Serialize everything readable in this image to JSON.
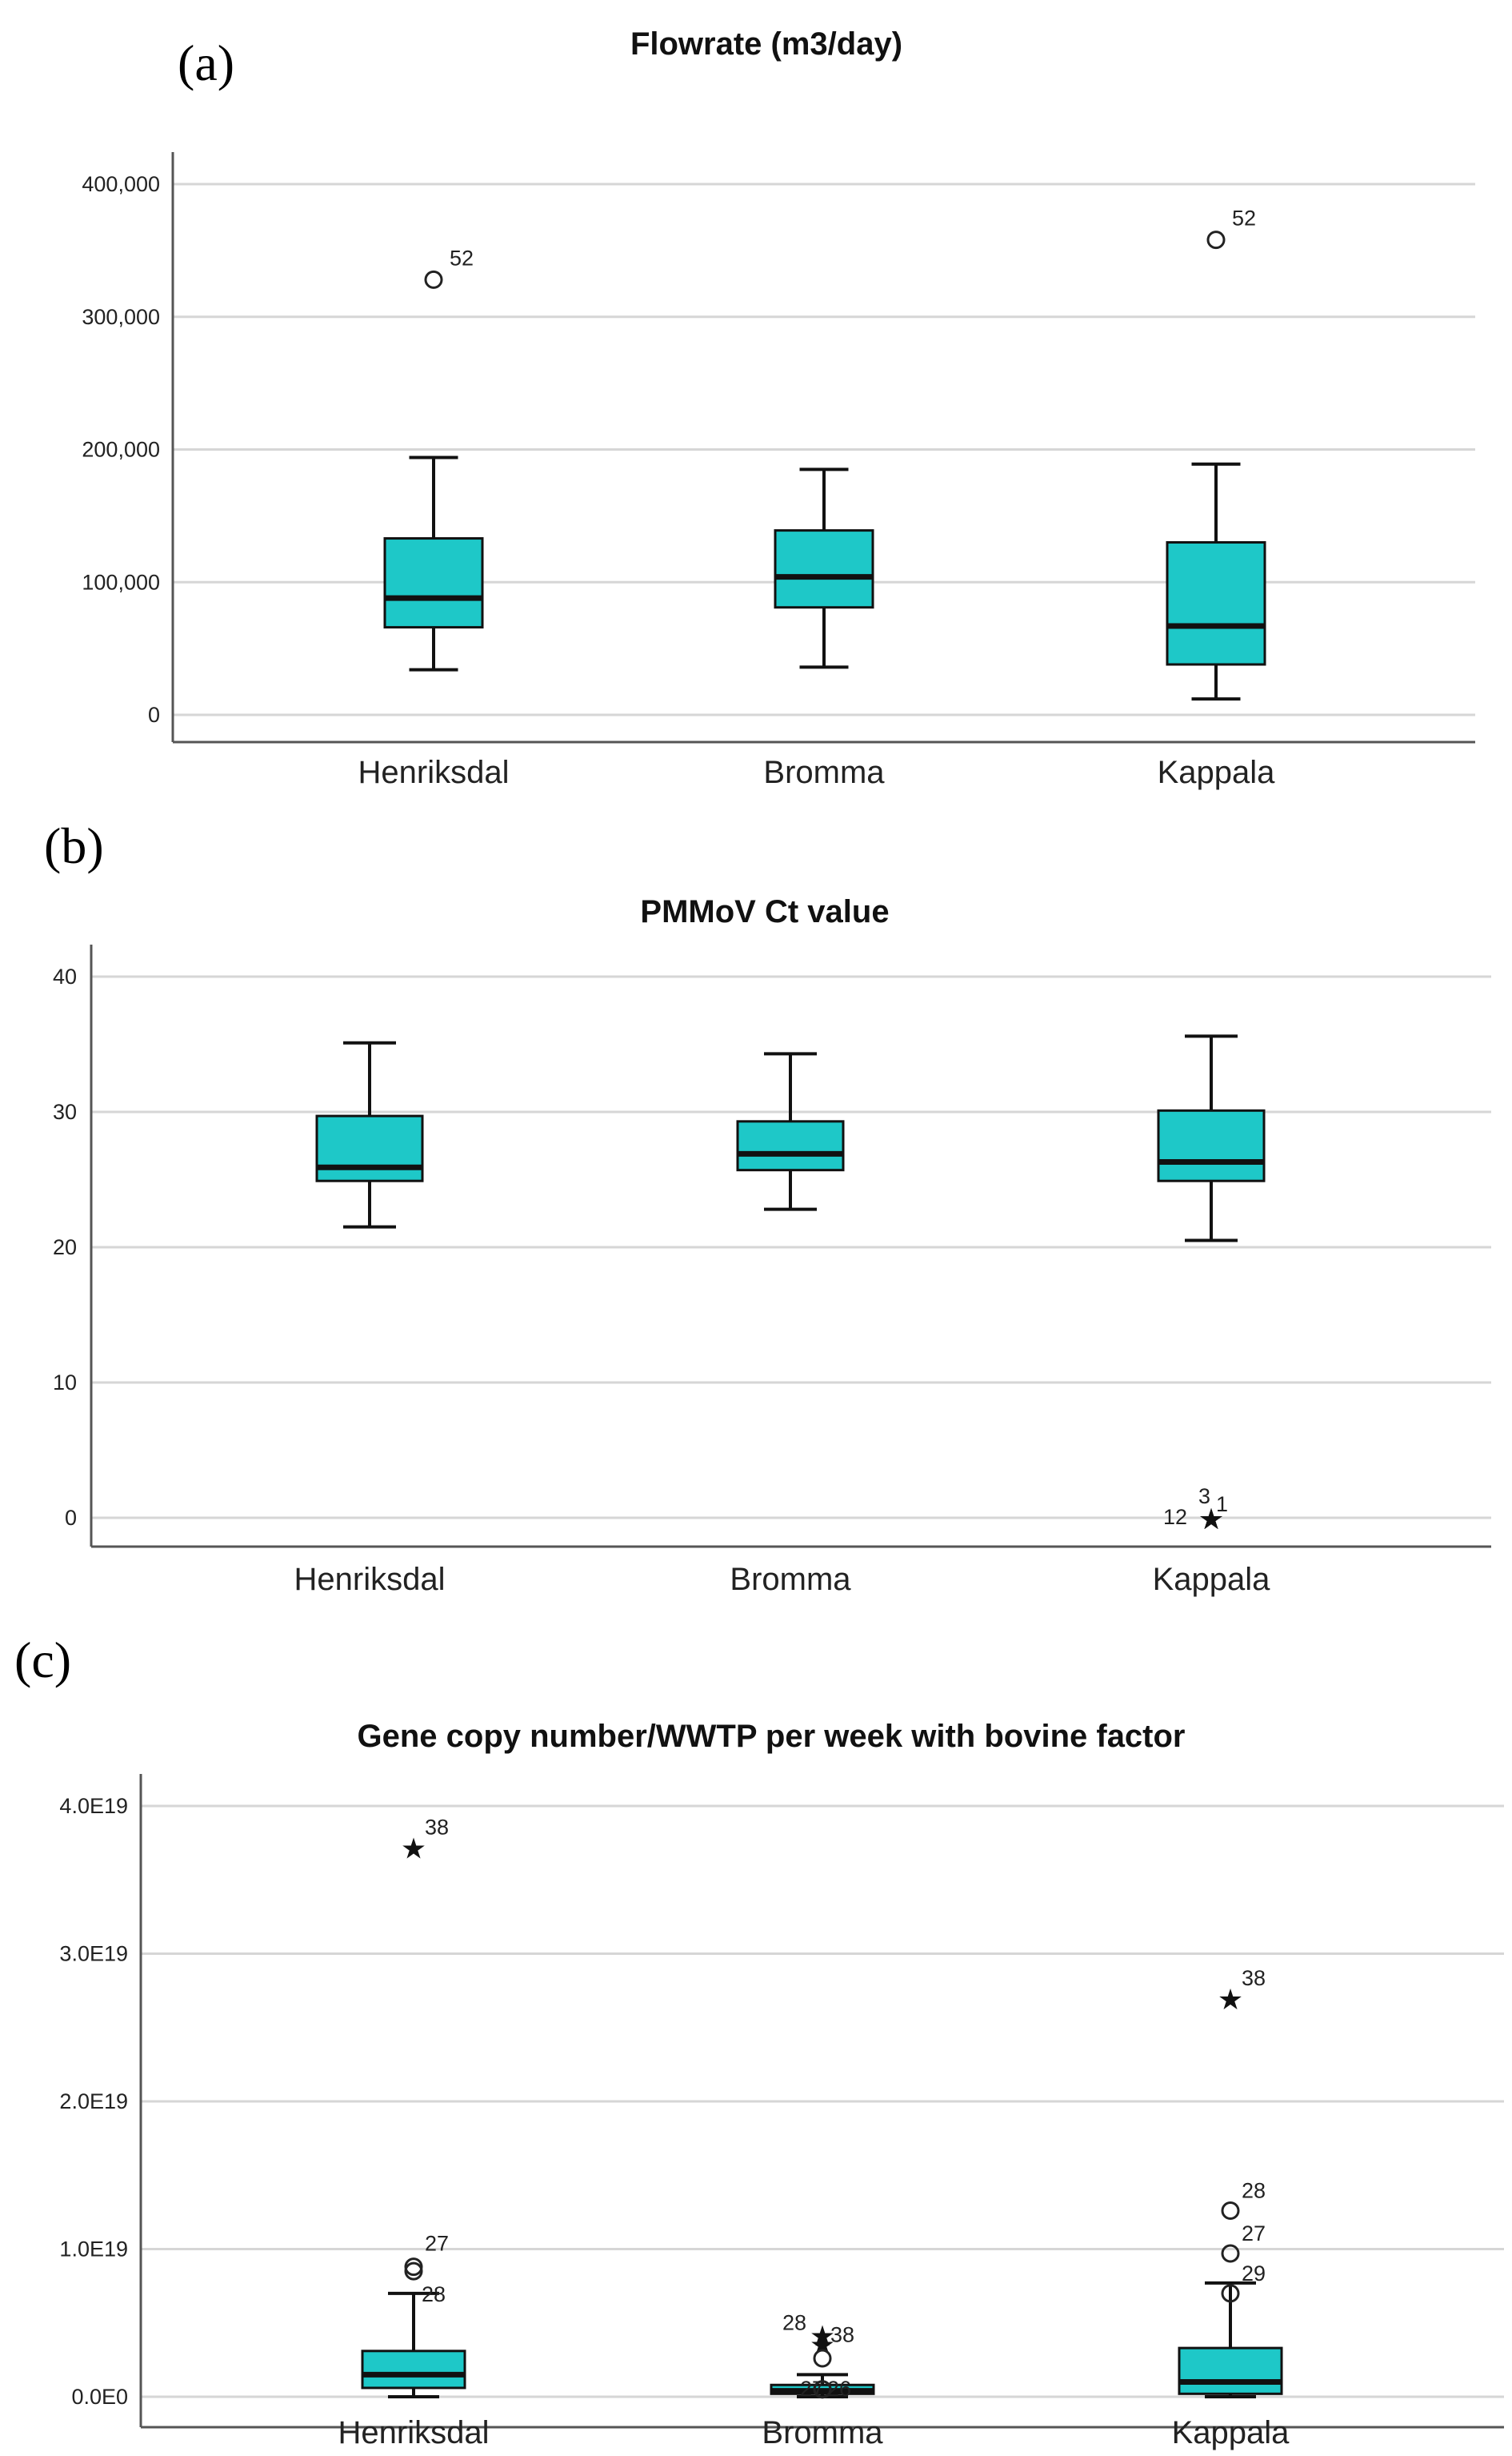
{
  "figure_labels": [
    "(a)",
    "(b)",
    "(c)"
  ],
  "colors": {
    "box_fill": "#1ec8c8",
    "box_stroke": "#111111",
    "grid": "#d6d6d6"
  },
  "chart_data": [
    {
      "type": "boxplot",
      "title": "Flowrate (m3/day)",
      "categories": [
        "Henriksdal",
        "Bromma",
        "Kappala"
      ],
      "ylim": [
        0,
        400000
      ],
      "yticks": [
        0,
        100000,
        200000,
        300000,
        400000
      ],
      "ytick_labels": [
        "0",
        "100,000",
        "200,000",
        "300,000",
        "400,000"
      ],
      "grid": true,
      "boxes": [
        {
          "category": "Henriksdal",
          "whisker_low": 34000,
          "q1": 66000,
          "median": 88000,
          "q3": 133000,
          "whisker_high": 194000
        },
        {
          "category": "Bromma",
          "whisker_low": 36000,
          "q1": 81000,
          "median": 104000,
          "q3": 139000,
          "whisker_high": 185000
        },
        {
          "category": "Kappala",
          "whisker_low": 12000,
          "q1": 38000,
          "median": 67000,
          "q3": 130000,
          "whisker_high": 189000
        }
      ],
      "outliers": [
        {
          "category": "Henriksdal",
          "value": 328000,
          "marker": "circle",
          "label": "52"
        },
        {
          "category": "Kappala",
          "value": 358000,
          "marker": "circle",
          "label": "52"
        }
      ]
    },
    {
      "type": "boxplot",
      "title": "PMMoV Ct value",
      "categories": [
        "Henriksdal",
        "Bromma",
        "Kappala"
      ],
      "ylim": [
        0,
        40
      ],
      "yticks": [
        0,
        10,
        20,
        30,
        40
      ],
      "ytick_labels": [
        "0",
        "10",
        "20",
        "30",
        "40"
      ],
      "grid": true,
      "boxes": [
        {
          "category": "Henriksdal",
          "whisker_low": 21.5,
          "q1": 24.9,
          "median": 25.9,
          "q3": 29.7,
          "whisker_high": 35.1
        },
        {
          "category": "Bromma",
          "whisker_low": 22.8,
          "q1": 25.7,
          "median": 26.9,
          "q3": 29.3,
          "whisker_high": 34.3
        },
        {
          "category": "Kappala",
          "whisker_low": 20.5,
          "q1": 24.9,
          "median": 26.3,
          "q3": 30.1,
          "whisker_high": 35.6
        }
      ],
      "outliers": [
        {
          "category": "Kappala",
          "value": 0,
          "marker": "star",
          "label": "12"
        },
        {
          "category": "Kappala",
          "value": 0,
          "marker": "star",
          "label": "3"
        },
        {
          "category": "Kappala",
          "value": 0,
          "marker": "star",
          "label": "1"
        }
      ]
    },
    {
      "type": "boxplot",
      "title": "Gene copy number/WWTP per week with bovine factor",
      "categories": [
        "Henriksdal",
        "Bromma",
        "Kappala"
      ],
      "ylim": [
        0,
        4e+19
      ],
      "yticks": [
        0,
        1e+19,
        2e+19,
        3e+19,
        4e+19
      ],
      "ytick_labels": [
        "0.0E0",
        "1.0E19",
        "2.0E19",
        "3.0E19",
        "4.0E19"
      ],
      "grid": true,
      "boxes": [
        {
          "category": "Henriksdal",
          "whisker_low": 0.0,
          "q1": 6e+17,
          "median": 1.5e+18,
          "q3": 3.1e+18,
          "whisker_high": 7e+18
        },
        {
          "category": "Bromma",
          "whisker_low": 0.0,
          "q1": 2e+17,
          "median": 4e+17,
          "q3": 8e+17,
          "whisker_high": 1.5e+18
        },
        {
          "category": "Kappala",
          "whisker_low": 0.0,
          "q1": 2e+17,
          "median": 1e+18,
          "q3": 3.3e+18,
          "whisker_high": 7.7e+18
        }
      ],
      "outliers": [
        {
          "category": "Henriksdal",
          "value": 3.72e+19,
          "marker": "star",
          "label": "38"
        },
        {
          "category": "Henriksdal",
          "value": 8.8e+18,
          "marker": "circle",
          "label": "27"
        },
        {
          "category": "Henriksdal",
          "value": 8.5e+18,
          "marker": "circle",
          "label": "28"
        },
        {
          "category": "Bromma",
          "value": 4.2e+18,
          "marker": "star",
          "label": "28"
        },
        {
          "category": "Bromma",
          "value": 3.6e+18,
          "marker": "star",
          "label": "38"
        },
        {
          "category": "Bromma",
          "value": 2.6e+18,
          "marker": "circle",
          "label": ""
        },
        {
          "category": "Bromma",
          "value": 5e+17,
          "marker": "circle",
          "label": "27"
        },
        {
          "category": "Bromma",
          "value": 5e+17,
          "marker": "circle",
          "label": "26"
        },
        {
          "category": "Kappala",
          "value": 2.7e+19,
          "marker": "star",
          "label": "38"
        },
        {
          "category": "Kappala",
          "value": 1.26e+19,
          "marker": "circle",
          "label": "28"
        },
        {
          "category": "Kappala",
          "value": 9.7e+18,
          "marker": "circle",
          "label": "27"
        },
        {
          "category": "Kappala",
          "value": 7e+18,
          "marker": "circle",
          "label": "29"
        }
      ]
    }
  ]
}
